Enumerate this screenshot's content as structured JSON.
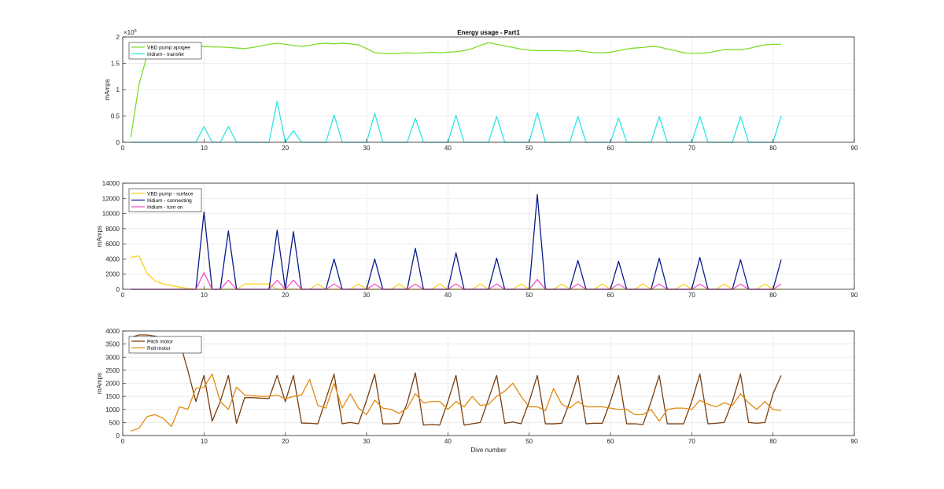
{
  "colors": {
    "vbd_apogee": "#7fdc2a",
    "iridium_transfer": "#2ee6e6",
    "vbd_surface": "#ffcf1a",
    "iridium_connecting": "#0a1a8c",
    "iridium_turnon": "#f24fc8",
    "pitch": "#7a3c0c",
    "roll": "#e08a10",
    "grid": "#e6e6e6",
    "axis": "#262626"
  },
  "chart_data": [
    {
      "type": "line",
      "title": "Energy usage - Part1",
      "xlabel": "",
      "ylabel": "mAmps",
      "exponent_label": "×10",
      "exponent_power": "5",
      "xlim": [
        0,
        90
      ],
      "ylim": [
        0,
        2
      ],
      "xticks": [
        0,
        10,
        20,
        30,
        40,
        50,
        60,
        70,
        80,
        90
      ],
      "yticks": [
        0,
        0.5,
        1,
        1.5,
        2
      ],
      "ytick_labels": [
        "0",
        "0.5",
        "1",
        "1.5",
        "2"
      ],
      "grid": true,
      "legend_position": "top-left",
      "x_start": 1,
      "series": [
        {
          "name": "VBD pump apogee",
          "color_key": "vbd_apogee",
          "values": [
            0.1,
            1.1,
            1.65,
            1.85,
            1.86,
            1.85,
            1.84,
            1.83,
            1.82,
            1.82,
            1.81,
            1.81,
            1.8,
            1.79,
            1.78,
            1.8,
            1.83,
            1.86,
            1.88,
            1.86,
            1.84,
            1.82,
            1.84,
            1.87,
            1.88,
            1.87,
            1.88,
            1.87,
            1.85,
            1.78,
            1.7,
            1.69,
            1.68,
            1.69,
            1.7,
            1.69,
            1.7,
            1.71,
            1.7,
            1.71,
            1.72,
            1.74,
            1.78,
            1.84,
            1.89,
            1.86,
            1.83,
            1.8,
            1.77,
            1.75,
            1.74,
            1.74,
            1.74,
            1.74,
            1.73,
            1.74,
            1.72,
            1.7,
            1.7,
            1.71,
            1.74,
            1.77,
            1.79,
            1.8,
            1.82,
            1.81,
            1.77,
            1.74,
            1.7,
            1.69,
            1.69,
            1.7,
            1.73,
            1.76,
            1.76,
            1.76,
            1.78,
            1.82,
            1.85,
            1.86,
            1.86
          ]
        },
        {
          "name": "Iridium - transfer",
          "color_key": "iridium_transfer",
          "values": [
            0,
            0,
            0,
            0,
            0,
            0,
            0,
            0,
            0,
            0.3,
            0,
            0,
            0.3,
            0,
            0,
            0,
            0,
            0,
            0.78,
            0,
            0.22,
            0,
            0,
            0,
            0,
            0.52,
            0,
            0,
            0,
            0,
            0.55,
            0,
            0,
            0,
            0,
            0.46,
            0,
            0,
            0,
            0,
            0.51,
            0,
            0,
            0,
            0,
            0.49,
            0,
            0,
            0,
            0,
            0.56,
            0,
            0,
            0,
            0,
            0.49,
            0,
            0,
            0,
            0,
            0.46,
            0,
            0,
            0,
            0,
            0.49,
            0,
            0,
            0,
            0,
            0.49,
            0,
            0,
            0,
            0,
            0.49,
            0,
            0,
            0,
            0,
            0.5
          ]
        }
      ]
    },
    {
      "type": "line",
      "title": "",
      "xlabel": "",
      "ylabel": "mAmps",
      "xlim": [
        0,
        90
      ],
      "ylim": [
        0,
        14000
      ],
      "xticks": [
        0,
        10,
        20,
        30,
        40,
        50,
        60,
        70,
        80,
        90
      ],
      "yticks": [
        0,
        2000,
        4000,
        6000,
        8000,
        10000,
        12000,
        14000
      ],
      "ytick_labels": [
        "0",
        "2000",
        "4000",
        "6000",
        "8000",
        "10000",
        "12000",
        "14000"
      ],
      "grid": true,
      "legend_position": "top-left",
      "x_start": 1,
      "series": [
        {
          "name": "VBD pump - surface",
          "color_key": "vbd_surface",
          "values": [
            4200,
            4400,
            2100,
            1100,
            700,
            500,
            300,
            100,
            0,
            0,
            0,
            0,
            0,
            0,
            700,
            700,
            700,
            700,
            0,
            0,
            0,
            0,
            0,
            700,
            0,
            0,
            0,
            0,
            700,
            0,
            0,
            0,
            0,
            700,
            0,
            0,
            0,
            0,
            700,
            0,
            0,
            0,
            0,
            700,
            0,
            0,
            0,
            0,
            700,
            0,
            0,
            0,
            0,
            700,
            0,
            0,
            0,
            0,
            700,
            0,
            0,
            0,
            0,
            700,
            0,
            0,
            0,
            0,
            700,
            0,
            0,
            0,
            0,
            700,
            0,
            0,
            0,
            0,
            700,
            0,
            0
          ]
        },
        {
          "name": "Iridium - connecting",
          "color_key": "iridium_connecting",
          "values": [
            0,
            0,
            0,
            0,
            0,
            0,
            0,
            0,
            0,
            10200,
            0,
            0,
            7700,
            0,
            0,
            0,
            0,
            0,
            7800,
            0,
            7600,
            0,
            0,
            0,
            0,
            4000,
            0,
            0,
            0,
            0,
            4000,
            0,
            0,
            0,
            0,
            5400,
            0,
            0,
            0,
            0,
            4800,
            0,
            0,
            0,
            0,
            4100,
            0,
            0,
            0,
            0,
            12500,
            0,
            0,
            0,
            0,
            3800,
            0,
            0,
            0,
            0,
            3700,
            0,
            0,
            0,
            0,
            4100,
            0,
            0,
            0,
            0,
            4200,
            0,
            0,
            0,
            0,
            3900,
            0,
            0,
            0,
            0,
            3900
          ]
        },
        {
          "name": "Iridium - turn on",
          "color_key": "iridium_turnon",
          "values": [
            0,
            0,
            0,
            0,
            0,
            0,
            0,
            0,
            0,
            2200,
            0,
            0,
            1200,
            0,
            0,
            0,
            0,
            0,
            1200,
            0,
            1200,
            0,
            0,
            0,
            0,
            700,
            0,
            0,
            0,
            0,
            700,
            0,
            0,
            0,
            0,
            700,
            0,
            0,
            0,
            0,
            700,
            0,
            0,
            0,
            0,
            700,
            0,
            0,
            0,
            0,
            1300,
            0,
            0,
            0,
            0,
            700,
            0,
            0,
            0,
            0,
            700,
            0,
            0,
            0,
            0,
            700,
            0,
            0,
            0,
            0,
            700,
            0,
            0,
            0,
            0,
            700,
            0,
            0,
            0,
            0,
            700
          ]
        }
      ]
    },
    {
      "type": "line",
      "title": "",
      "xlabel": "Dive number",
      "ylabel": "mAmps",
      "xlim": [
        0,
        90
      ],
      "ylim": [
        0,
        4000
      ],
      "xticks": [
        0,
        10,
        20,
        30,
        40,
        50,
        60,
        70,
        80,
        90
      ],
      "yticks": [
        0,
        500,
        1000,
        1500,
        2000,
        2500,
        3000,
        3500,
        4000
      ],
      "ytick_labels": [
        "0",
        "500",
        "1000",
        "1500",
        "2000",
        "2500",
        "3000",
        "3500",
        "4000"
      ],
      "grid": true,
      "legend_position": "top-left",
      "x_start": 1,
      "series": [
        {
          "name": "Pitch motor",
          "color_key": "pitch",
          "values": [
            3750,
            3850,
            3850,
            3800,
            3700,
            3650,
            3600,
            2500,
            1300,
            2300,
            550,
            1300,
            2300,
            470,
            1450,
            1450,
            1430,
            1420,
            2300,
            1300,
            2300,
            480,
            470,
            450,
            1400,
            2350,
            450,
            500,
            450,
            1350,
            2350,
            450,
            450,
            470,
            1250,
            2400,
            400,
            420,
            400,
            1300,
            2300,
            400,
            450,
            500,
            1400,
            2300,
            470,
            520,
            450,
            1300,
            2300,
            450,
            450,
            470,
            1300,
            2300,
            450,
            470,
            470,
            1300,
            2300,
            450,
            450,
            420,
            1300,
            2300,
            450,
            450,
            450,
            1300,
            2350,
            450,
            470,
            500,
            1300,
            2350,
            500,
            470,
            500,
            1600,
            2300
          ]
        },
        {
          "name": "Roll motor",
          "color_key": "roll",
          "values": [
            170,
            280,
            730,
            800,
            650,
            350,
            1100,
            1000,
            1800,
            1850,
            2350,
            1300,
            1000,
            1850,
            1550,
            1520,
            1500,
            1500,
            1550,
            1400,
            1500,
            1550,
            2150,
            1150,
            1050,
            2000,
            1050,
            1600,
            1050,
            800,
            1350,
            1050,
            1000,
            850,
            1050,
            1600,
            1250,
            1300,
            1300,
            1000,
            1300,
            1100,
            1500,
            1150,
            1200,
            1500,
            1700,
            2000,
            1500,
            1100,
            1100,
            950,
            1800,
            1200,
            1050,
            1300,
            1100,
            1100,
            1100,
            1050,
            1000,
            1000,
            800,
            800,
            1000,
            550,
            1000,
            1050,
            1050,
            1000,
            1350,
            1200,
            1100,
            1250,
            1150,
            1600,
            1250,
            1000,
            1300,
            1000,
            950
          ]
        }
      ]
    }
  ]
}
